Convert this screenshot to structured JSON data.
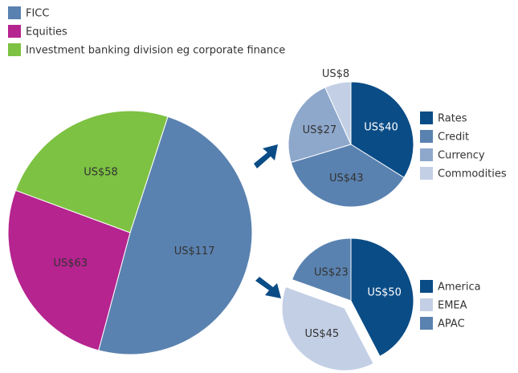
{
  "chart_data": [
    {
      "type": "pie",
      "categories": [
        "FICC",
        "Equities",
        "Investment banking division eg corporate finance"
      ],
      "values": [
        117,
        63,
        58
      ],
      "value_labels": [
        "US$117",
        "US$63",
        "US$58"
      ],
      "colors": [
        "#5a82b0",
        "#b5248f",
        "#7dc242"
      ],
      "legend": "top-left"
    },
    {
      "type": "pie",
      "categories": [
        "Rates",
        "Credit",
        "Currency",
        "Commodities"
      ],
      "values": [
        40,
        43,
        27,
        8
      ],
      "value_labels": [
        "US$40",
        "US$43",
        "US$27",
        "US$8"
      ],
      "colors": [
        "#0a4c86",
        "#5a82b0",
        "#8ea8cc",
        "#c3cfe5"
      ],
      "legend": "right"
    },
    {
      "type": "pie",
      "categories": [
        "America",
        "EMEA",
        "APAC"
      ],
      "values": [
        50,
        45,
        23
      ],
      "value_labels": [
        "US$50",
        "US$45",
        "US$23"
      ],
      "colors": [
        "#0a4c86",
        "#c3cfe5",
        "#5a82b0"
      ],
      "legend": "right"
    }
  ]
}
